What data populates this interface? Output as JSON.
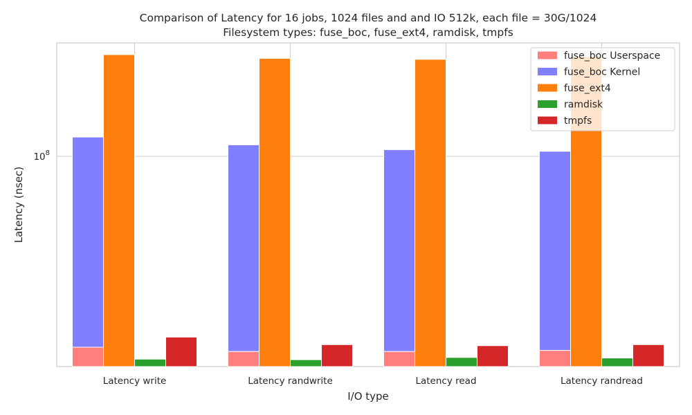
{
  "chart_data": {
    "type": "bar",
    "title": [
      "Comparison of Latency for 16 jobs, 1024 files and  and IO 512k, each file = 30G/1024",
      "Filesystem types: fuse_boc, fuse_ext4, ramdisk, tmpfs"
    ],
    "xlabel": "I/O type",
    "ylabel": "Latency (nsec)",
    "yscale": "log",
    "ylim": [
      29000000,
      195000000
    ],
    "y_tick_label": {
      "base": "10",
      "exp": "8"
    },
    "y_tick_value": 100000000,
    "categories": [
      "Latency write",
      "Latency randwrite",
      "Latency read",
      "Latency randread"
    ],
    "series": [
      {
        "name": "fuse_boc Userspace",
        "color": "#ff7f7f",
        "group": 0,
        "values": [
          32500000,
          31700000,
          31700000,
          31900000
        ]
      },
      {
        "name": "fuse_boc Kernel",
        "color": "#7f7fff",
        "group": 0,
        "stacked_on": "fuse_boc Userspace",
        "values": [
          112000000,
          107000000,
          104000000,
          103000000
        ]
      },
      {
        "name": "fuse_ext4",
        "color": "#ff7f0e",
        "group": 1,
        "values": [
          182000000,
          178000000,
          177000000,
          180000000
        ]
      },
      {
        "name": "ramdisk",
        "color": "#2ca02c",
        "group": 2,
        "values": [
          30300000,
          30200000,
          30600000,
          30500000
        ]
      },
      {
        "name": "tmpfs",
        "color": "#d62728",
        "group": 3,
        "values": [
          34500000,
          33000000,
          32800000,
          33000000
        ]
      }
    ],
    "legend_position": "top-right",
    "grid": true
  }
}
